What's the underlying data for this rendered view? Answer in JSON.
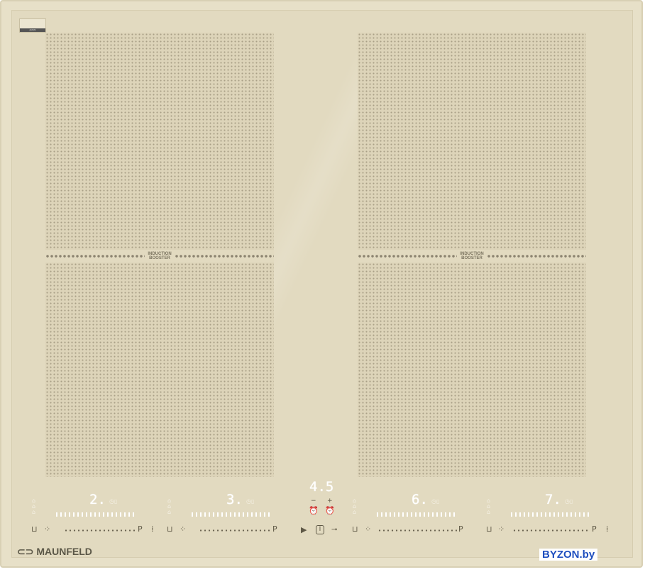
{
  "brand": "MAUNFELD",
  "watermark": "BYZON.by",
  "badge_text": "JAPAN",
  "booster_label_line1": "INDUCTION",
  "booster_label_line2": "BOOSTER",
  "timer_display": "4.5",
  "timer_minus": "−",
  "timer_plus": "+",
  "zones": [
    {
      "level": "2."
    },
    {
      "level": "3."
    },
    {
      "level": "6."
    },
    {
      "level": "7."
    }
  ],
  "power_label": "P",
  "colors": {
    "glass": "#e2dac0",
    "display": "#ffffff",
    "watermark": "#1f4fbf"
  },
  "icons": [
    "alarm-clock-icon",
    "play-pause-icon",
    "power-icon",
    "key-lock-icon",
    "pot-icon",
    "grid-icon",
    "bridge-icon"
  ]
}
